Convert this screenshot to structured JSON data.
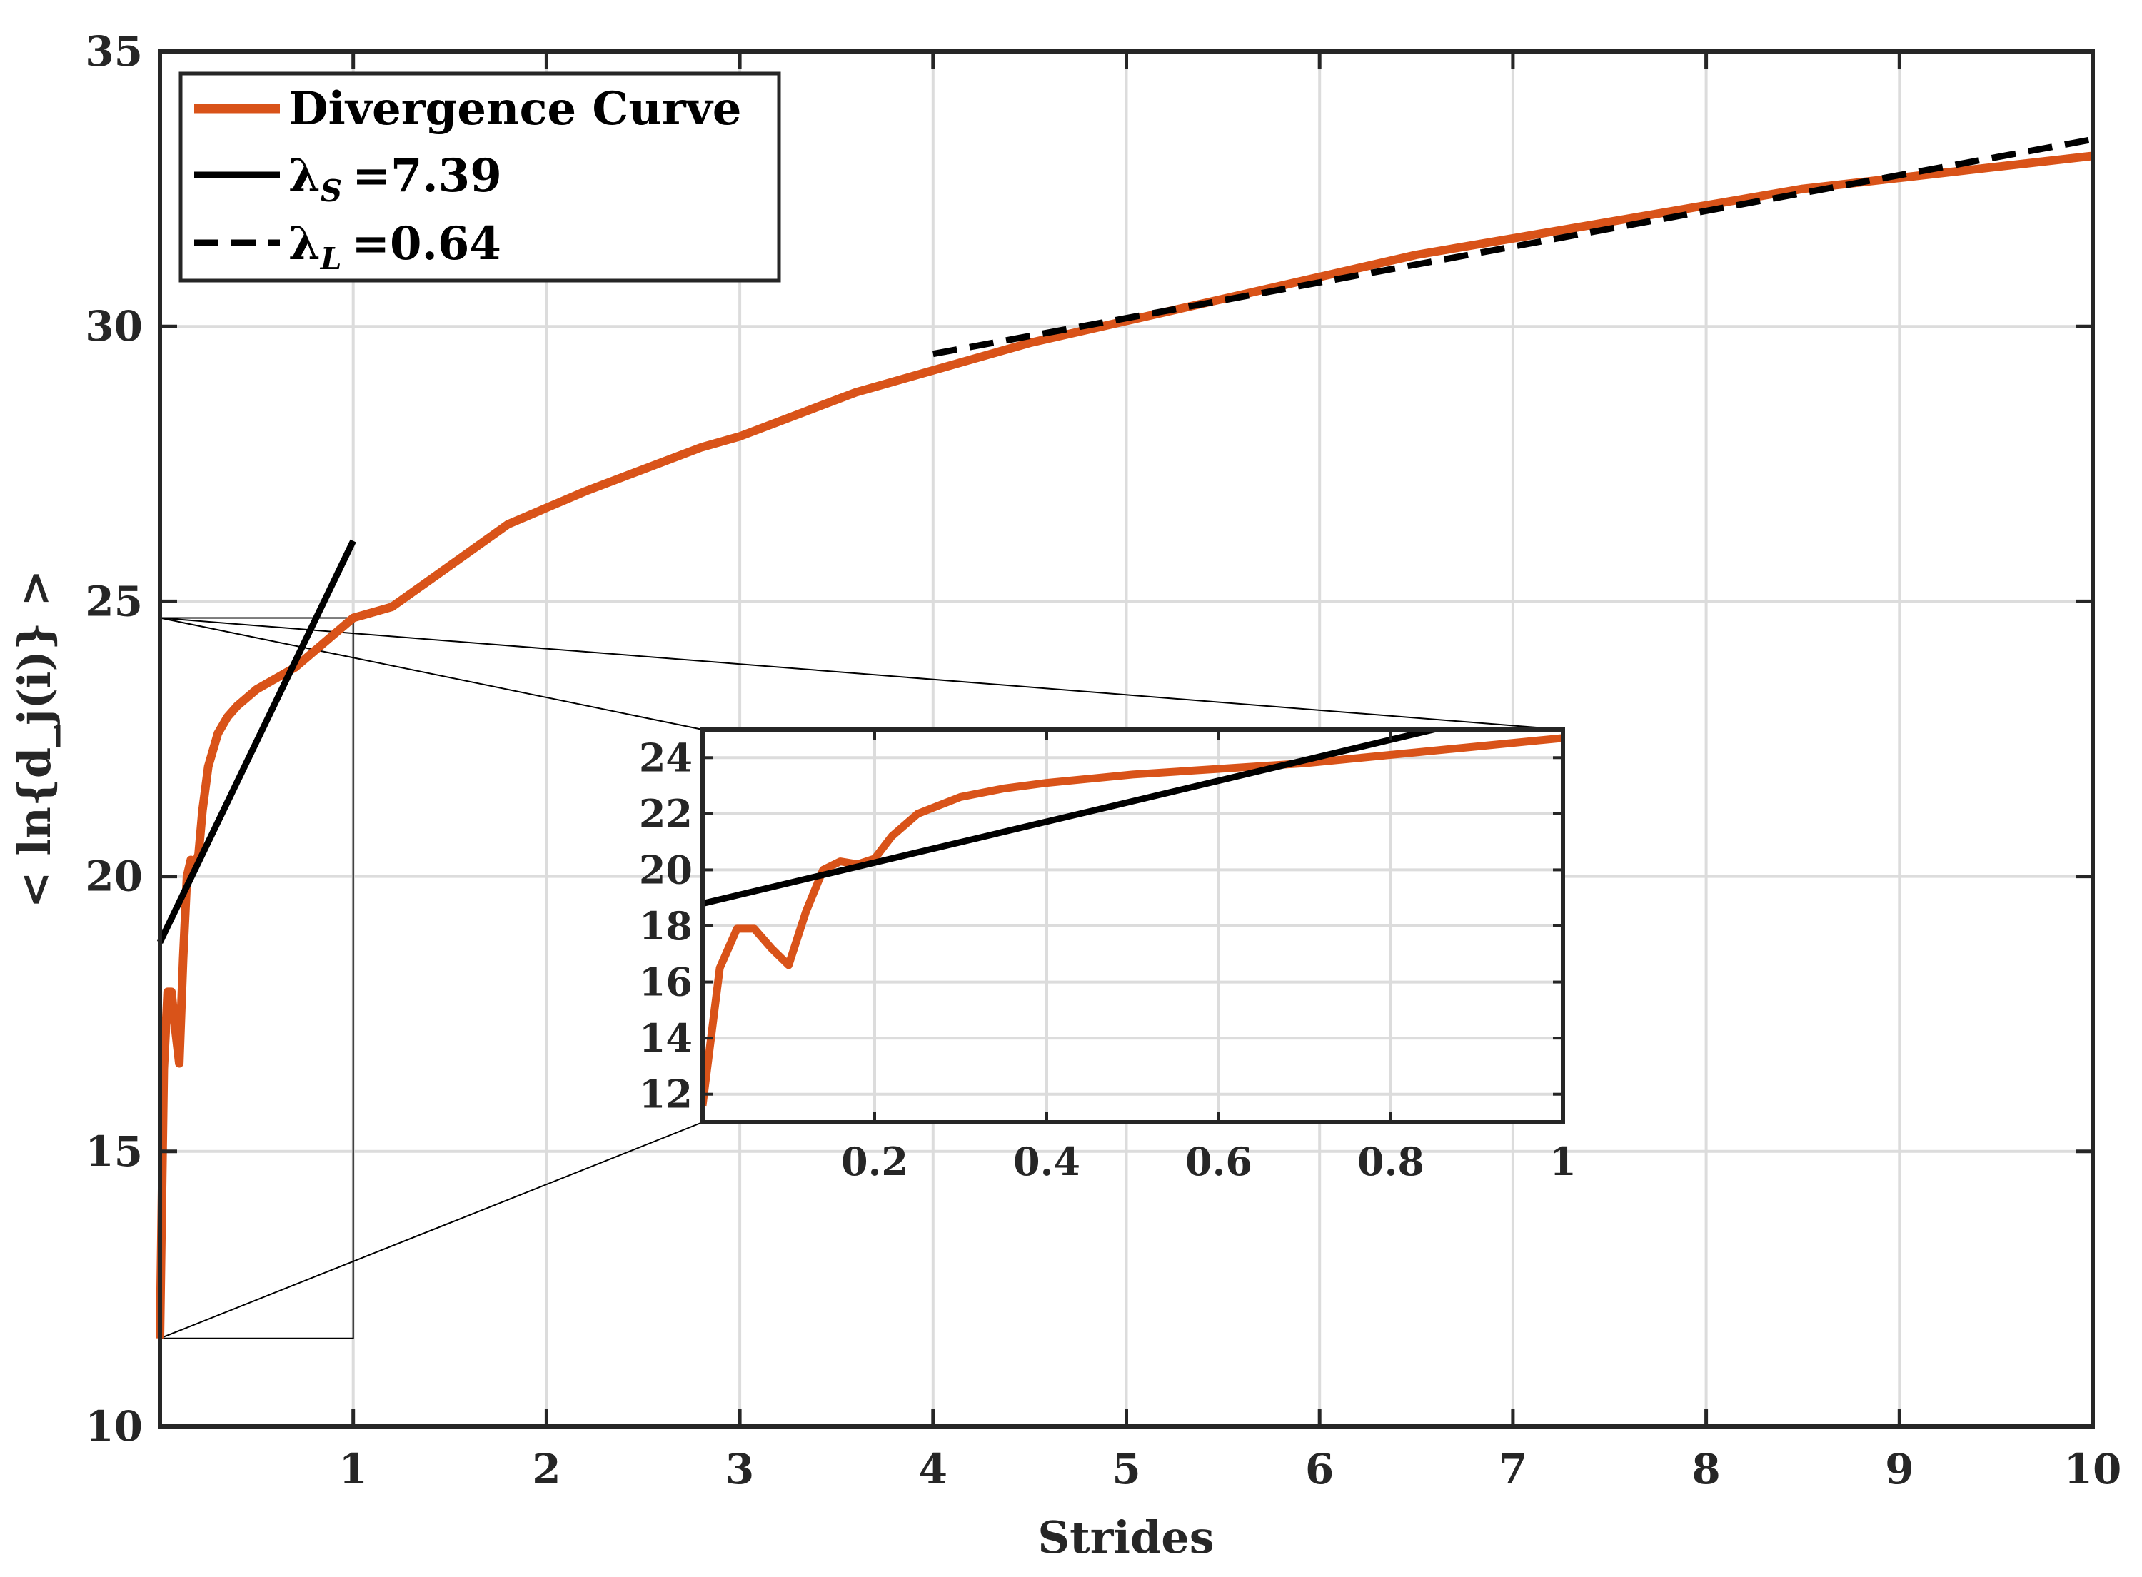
{
  "chart_data": {
    "type": "line",
    "xlabel": "Strides",
    "ylabel": "< ln{d_j(i)} >",
    "xlim": [
      0,
      10
    ],
    "ylim": [
      10,
      35
    ],
    "xticks": [
      1,
      2,
      3,
      4,
      5,
      6,
      7,
      8,
      9,
      10
    ],
    "yticks": [
      10,
      15,
      20,
      25,
      30,
      35
    ],
    "grid": true,
    "legend_position": "top-left",
    "colors": {
      "divergence": "#D95319",
      "fit": "#000000",
      "grid": "#dcdcdc",
      "axes": "#262626"
    },
    "legend": [
      {
        "label": "Divergence Curve",
        "style": "solid",
        "color": "#D95319"
      },
      {
        "label": "λS =7.39",
        "symbol": "λ",
        "subscript": "S",
        "value": "=7.39",
        "style": "solid",
        "color": "#000000"
      },
      {
        "label": "λL =0.64",
        "symbol": "λ",
        "subscript": "L",
        "value": "=0.64",
        "style": "dashed",
        "color": "#000000"
      }
    ],
    "series": [
      {
        "name": "Divergence Curve",
        "x": [
          0.0,
          0.02,
          0.04,
          0.06,
          0.08,
          0.1,
          0.12,
          0.14,
          0.16,
          0.18,
          0.2,
          0.22,
          0.25,
          0.3,
          0.35,
          0.4,
          0.5,
          0.6,
          0.7,
          0.8,
          0.9,
          1.0,
          1.2,
          1.4,
          1.6,
          1.8,
          2.0,
          2.2,
          2.5,
          2.8,
          3.0,
          3.3,
          3.6,
          4.0,
          4.5,
          5.0,
          5.5,
          6.0,
          6.5,
          7.0,
          7.5,
          8.0,
          8.5,
          9.0,
          9.5,
          10.0
        ],
        "y": [
          11.6,
          16.5,
          17.9,
          17.9,
          17.2,
          16.6,
          18.5,
          20.0,
          20.3,
          20.2,
          20.4,
          21.2,
          22.0,
          22.6,
          22.9,
          23.1,
          23.4,
          23.6,
          23.8,
          24.1,
          24.4,
          24.7,
          24.9,
          25.4,
          25.9,
          26.4,
          26.7,
          27.0,
          27.4,
          27.8,
          28.0,
          28.4,
          28.8,
          29.2,
          29.7,
          30.1,
          30.5,
          30.9,
          31.3,
          31.6,
          31.9,
          32.2,
          32.5,
          32.7,
          32.9,
          33.1
        ]
      },
      {
        "name": "λS =7.39",
        "x": [
          0.0,
          1.0
        ],
        "y": [
          18.8,
          26.1
        ]
      },
      {
        "name": "λL =0.64",
        "x": [
          4.0,
          10.0
        ],
        "y": [
          29.5,
          33.4
        ]
      }
    ],
    "inset": {
      "xlim": [
        0.0,
        1.0
      ],
      "ylim": [
        11,
        25
      ],
      "xticks": [
        0.2,
        0.4,
        0.6,
        0.8,
        1
      ],
      "xtick_labels": [
        "0.2",
        "0.4",
        "0.6",
        "0.8",
        "1"
      ],
      "yticks": [
        12,
        14,
        16,
        18,
        20,
        22,
        24
      ],
      "grid": true,
      "zoom_region": {
        "x": [
          0.0,
          1.0
        ],
        "y": [
          11.6,
          24.7
        ]
      }
    }
  }
}
